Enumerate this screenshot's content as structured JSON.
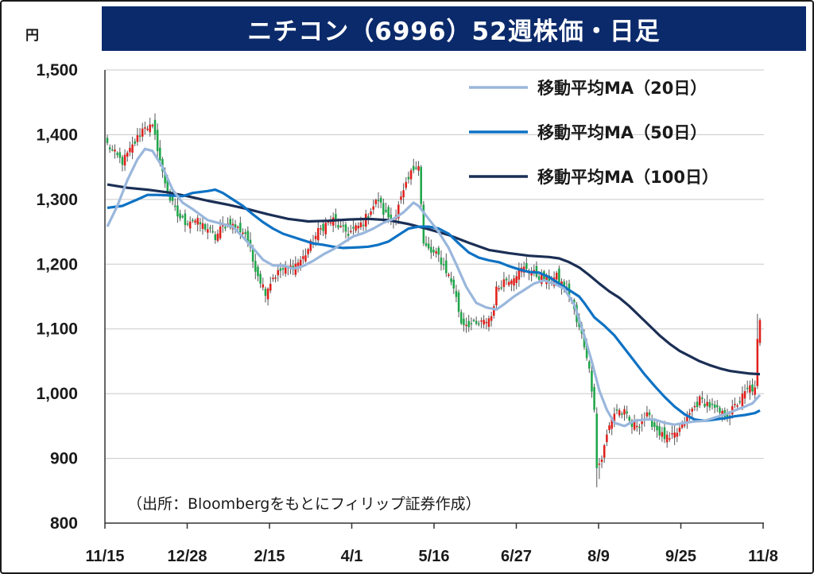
{
  "header": {
    "title": "ニチコン（6996）52週株価・日足",
    "unit": "円"
  },
  "note": "（出所：Bloombergをもとにフィリップ証券作成）",
  "chart_data": {
    "type": "candlestick",
    "x_tick_labels": [
      "11/15",
      "12/28",
      "2/15",
      "4/1",
      "5/16",
      "6/27",
      "8/9",
      "9/25",
      "11/8"
    ],
    "y_ticks": [
      800,
      900,
      1000,
      1100,
      1200,
      1300,
      1400,
      1500
    ],
    "y_tick_labels": [
      "800",
      "900",
      "1,000",
      "1,100",
      "1,200",
      "1,300",
      "1,400",
      "1,500"
    ],
    "ylim": [
      800,
      1500
    ],
    "grid": "horizontal",
    "legend_position": "top-right",
    "colors": {
      "up": "#e0201c",
      "down": "#1fa64a",
      "ma20": "#9ab7dc",
      "ma50": "#0e72c4",
      "ma100": "#1b2f55"
    },
    "legend": [
      {
        "key": "ma20",
        "label": "移動平均MA（20日）"
      },
      {
        "key": "ma50",
        "label": "移動平均MA（50日）"
      },
      {
        "key": "ma100",
        "label": "移動平均MA（100日）"
      }
    ],
    "close_anchors": [
      [
        0,
        1385
      ],
      [
        3,
        1370
      ],
      [
        6,
        1358
      ],
      [
        9,
        1375
      ],
      [
        12,
        1395
      ],
      [
        15,
        1415
      ],
      [
        18,
        1410
      ],
      [
        20,
        1380
      ],
      [
        22,
        1340
      ],
      [
        25,
        1300
      ],
      [
        28,
        1275
      ],
      [
        31,
        1265
      ],
      [
        34,
        1270
      ],
      [
        37,
        1262
      ],
      [
        40,
        1255
      ],
      [
        43,
        1240
      ],
      [
        46,
        1260
      ],
      [
        49,
        1262
      ],
      [
        52,
        1255
      ],
      [
        55,
        1248
      ],
      [
        58,
        1205
      ],
      [
        61,
        1175
      ],
      [
        63,
        1158
      ],
      [
        66,
        1180
      ],
      [
        69,
        1190
      ],
      [
        72,
        1193
      ],
      [
        75,
        1200
      ],
      [
        78,
        1210
      ],
      [
        81,
        1230
      ],
      [
        84,
        1250
      ],
      [
        87,
        1262
      ],
      [
        90,
        1268
      ],
      [
        93,
        1255
      ],
      [
        96,
        1248
      ],
      [
        99,
        1255
      ],
      [
        102,
        1265
      ],
      [
        105,
        1285
      ],
      [
        108,
        1300
      ],
      [
        110,
        1280
      ],
      [
        113,
        1270
      ],
      [
        115,
        1278
      ],
      [
        117,
        1300
      ],
      [
        119,
        1320
      ],
      [
        121,
        1340
      ],
      [
        123,
        1355
      ],
      [
        124,
        1355
      ],
      [
        126,
        1230
      ],
      [
        129,
        1218
      ],
      [
        132,
        1212
      ],
      [
        135,
        1190
      ],
      [
        138,
        1165
      ],
      [
        141,
        1110
      ],
      [
        144,
        1108
      ],
      [
        147,
        1105
      ],
      [
        150,
        1110
      ],
      [
        153,
        1120
      ],
      [
        155,
        1160
      ],
      [
        158,
        1175
      ],
      [
        161,
        1180
      ],
      [
        164,
        1190
      ],
      [
        167,
        1195
      ],
      [
        170,
        1185
      ],
      [
        173,
        1180
      ],
      [
        176,
        1175
      ],
      [
        179,
        1180
      ],
      [
        182,
        1165
      ],
      [
        185,
        1145
      ],
      [
        187,
        1110
      ],
      [
        189,
        1090
      ],
      [
        191,
        1060
      ],
      [
        193,
        1010
      ],
      [
        194,
        980
      ],
      [
        195,
        885
      ],
      [
        197,
        900
      ],
      [
        199,
        935
      ],
      [
        201,
        965
      ],
      [
        203,
        975
      ],
      [
        206,
        970
      ],
      [
        209,
        950
      ],
      [
        212,
        955
      ],
      [
        215,
        965
      ],
      [
        218,
        950
      ],
      [
        221,
        935
      ],
      [
        224,
        928
      ],
      [
        227,
        940
      ],
      [
        230,
        955
      ],
      [
        233,
        975
      ],
      [
        236,
        990
      ],
      [
        239,
        985
      ],
      [
        242,
        975
      ],
      [
        245,
        968
      ],
      [
        248,
        970
      ],
      [
        251,
        985
      ],
      [
        254,
        1000
      ],
      [
        256,
        1010
      ],
      [
        258,
        1005
      ],
      [
        259,
        1080
      ],
      [
        260,
        1110
      ]
    ],
    "ma20_anchors": [
      [
        0,
        1258
      ],
      [
        4,
        1290
      ],
      [
        8,
        1330
      ],
      [
        12,
        1362
      ],
      [
        15,
        1378
      ],
      [
        18,
        1375
      ],
      [
        22,
        1350
      ],
      [
        26,
        1315
      ],
      [
        30,
        1295
      ],
      [
        34,
        1285
      ],
      [
        40,
        1268
      ],
      [
        46,
        1262
      ],
      [
        50,
        1258
      ],
      [
        54,
        1242
      ],
      [
        58,
        1225
      ],
      [
        62,
        1207
      ],
      [
        66,
        1198
      ],
      [
        70,
        1198
      ],
      [
        74,
        1193
      ],
      [
        78,
        1197
      ],
      [
        82,
        1205
      ],
      [
        86,
        1215
      ],
      [
        90,
        1223
      ],
      [
        94,
        1233
      ],
      [
        98,
        1243
      ],
      [
        102,
        1248
      ],
      [
        106,
        1255
      ],
      [
        110,
        1264
      ],
      [
        114,
        1270
      ],
      [
        118,
        1280
      ],
      [
        122,
        1295
      ],
      [
        124,
        1290
      ],
      [
        128,
        1270
      ],
      [
        132,
        1250
      ],
      [
        136,
        1225
      ],
      [
        139,
        1200
      ],
      [
        143,
        1165
      ],
      [
        147,
        1140
      ],
      [
        151,
        1133
      ],
      [
        155,
        1130
      ],
      [
        158,
        1138
      ],
      [
        162,
        1150
      ],
      [
        166,
        1160
      ],
      [
        170,
        1170
      ],
      [
        174,
        1175
      ],
      [
        178,
        1170
      ],
      [
        182,
        1162
      ],
      [
        186,
        1138
      ],
      [
        190,
        1090
      ],
      [
        193,
        1050
      ],
      [
        196,
        1005
      ],
      [
        199,
        975
      ],
      [
        202,
        955
      ],
      [
        206,
        950
      ],
      [
        210,
        958
      ],
      [
        214,
        960
      ],
      [
        218,
        960
      ],
      [
        222,
        955
      ],
      [
        226,
        952
      ],
      [
        230,
        955
      ],
      [
        234,
        957
      ],
      [
        238,
        958
      ],
      [
        242,
        963
      ],
      [
        246,
        968
      ],
      [
        250,
        974
      ],
      [
        254,
        980
      ],
      [
        257,
        985
      ],
      [
        260,
        998
      ]
    ],
    "ma50_anchors": [
      [
        0,
        1287
      ],
      [
        6,
        1290
      ],
      [
        12,
        1300
      ],
      [
        16,
        1307
      ],
      [
        20,
        1307
      ],
      [
        26,
        1306
      ],
      [
        30,
        1305
      ],
      [
        34,
        1310
      ],
      [
        40,
        1313
      ],
      [
        43,
        1315
      ],
      [
        46,
        1310
      ],
      [
        50,
        1300
      ],
      [
        54,
        1290
      ],
      [
        58,
        1277
      ],
      [
        62,
        1265
      ],
      [
        66,
        1255
      ],
      [
        70,
        1247
      ],
      [
        74,
        1242
      ],
      [
        78,
        1237
      ],
      [
        82,
        1232
      ],
      [
        86,
        1230
      ],
      [
        90,
        1227
      ],
      [
        94,
        1225
      ],
      [
        100,
        1226
      ],
      [
        104,
        1227
      ],
      [
        108,
        1230
      ],
      [
        112,
        1235
      ],
      [
        116,
        1245
      ],
      [
        120,
        1255
      ],
      [
        124,
        1258
      ],
      [
        128,
        1258
      ],
      [
        132,
        1255
      ],
      [
        136,
        1247
      ],
      [
        140,
        1232
      ],
      [
        144,
        1218
      ],
      [
        148,
        1210
      ],
      [
        152,
        1206
      ],
      [
        156,
        1203
      ],
      [
        160,
        1197
      ],
      [
        164,
        1192
      ],
      [
        168,
        1188
      ],
      [
        172,
        1187
      ],
      [
        176,
        1180
      ],
      [
        180,
        1170
      ],
      [
        184,
        1160
      ],
      [
        188,
        1150
      ],
      [
        190,
        1140
      ],
      [
        194,
        1118
      ],
      [
        198,
        1105
      ],
      [
        202,
        1090
      ],
      [
        206,
        1070
      ],
      [
        210,
        1050
      ],
      [
        214,
        1030
      ],
      [
        218,
        1012
      ],
      [
        222,
        995
      ],
      [
        226,
        980
      ],
      [
        230,
        968
      ],
      [
        234,
        960
      ],
      [
        238,
        958
      ],
      [
        242,
        960
      ],
      [
        246,
        962
      ],
      [
        250,
        965
      ],
      [
        254,
        967
      ],
      [
        258,
        970
      ],
      [
        260,
        974
      ]
    ],
    "ma100_anchors": [
      [
        0,
        1323
      ],
      [
        8,
        1318
      ],
      [
        16,
        1315
      ],
      [
        24,
        1311
      ],
      [
        32,
        1305
      ],
      [
        40,
        1298
      ],
      [
        48,
        1292
      ],
      [
        56,
        1285
      ],
      [
        64,
        1277
      ],
      [
        72,
        1270
      ],
      [
        80,
        1266
      ],
      [
        88,
        1267
      ],
      [
        96,
        1269
      ],
      [
        104,
        1270
      ],
      [
        112,
        1268
      ],
      [
        120,
        1262
      ],
      [
        128,
        1254
      ],
      [
        136,
        1245
      ],
      [
        144,
        1233
      ],
      [
        152,
        1222
      ],
      [
        160,
        1217
      ],
      [
        168,
        1213
      ],
      [
        176,
        1211
      ],
      [
        180,
        1209
      ],
      [
        184,
        1203
      ],
      [
        188,
        1195
      ],
      [
        192,
        1183
      ],
      [
        196,
        1170
      ],
      [
        200,
        1158
      ],
      [
        204,
        1148
      ],
      [
        208,
        1135
      ],
      [
        212,
        1120
      ],
      [
        216,
        1105
      ],
      [
        220,
        1090
      ],
      [
        224,
        1077
      ],
      [
        228,
        1066
      ],
      [
        232,
        1058
      ],
      [
        236,
        1050
      ],
      [
        240,
        1044
      ],
      [
        244,
        1039
      ],
      [
        248,
        1035
      ],
      [
        252,
        1033
      ],
      [
        256,
        1031
      ],
      [
        260,
        1030
      ]
    ]
  }
}
